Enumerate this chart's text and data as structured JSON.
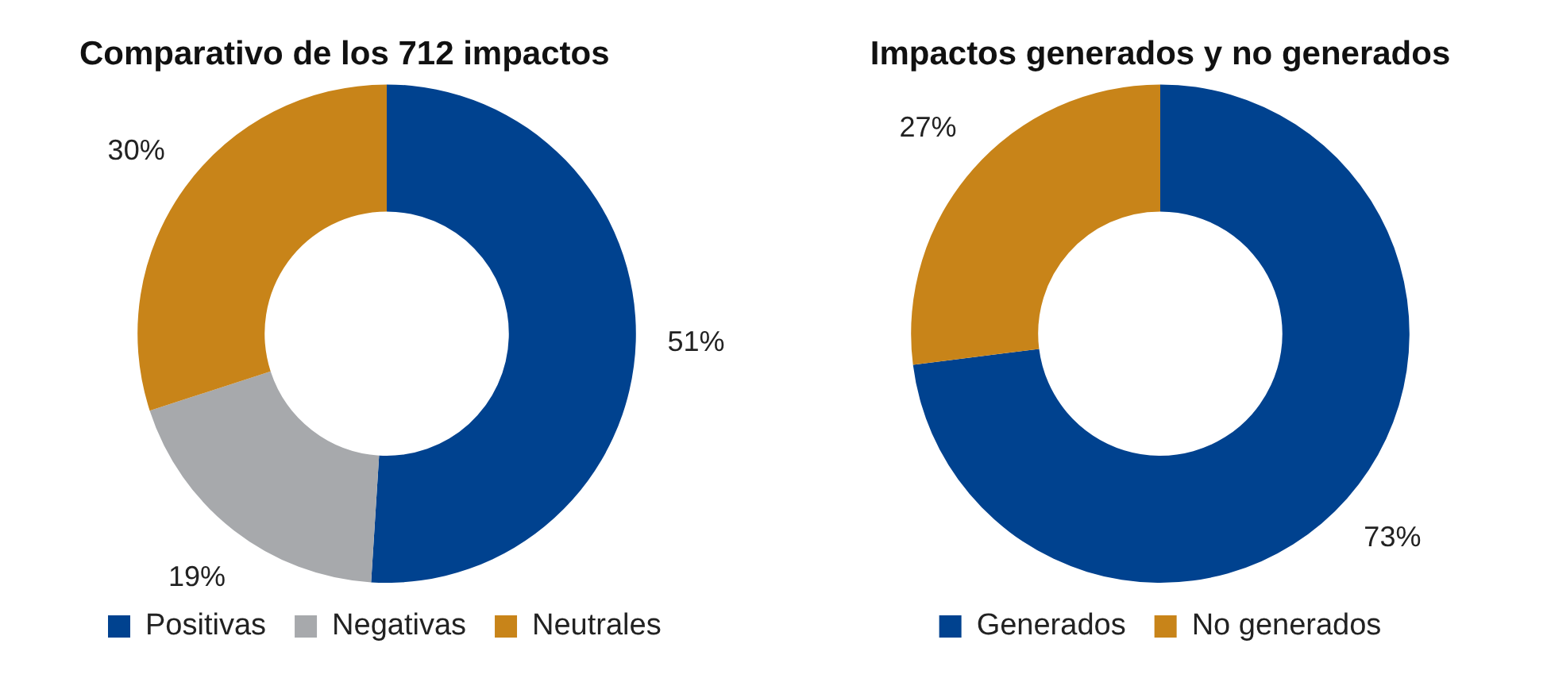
{
  "chart_data": [
    {
      "type": "donut",
      "title": "Comparativo de los 712 impactos",
      "categories": [
        "Positivas",
        "Negativas",
        "Neutrales"
      ],
      "values": [
        51,
        19,
        30
      ],
      "value_labels": [
        "51%",
        "19%",
        "30%"
      ],
      "colors": [
        "#00428f",
        "#a7a9ac",
        "#c88419"
      ],
      "legend": "bottom"
    },
    {
      "type": "donut",
      "title": "Impactos generados y no generados",
      "categories": [
        "Generados",
        "No generados"
      ],
      "values": [
        73,
        27
      ],
      "value_labels": [
        "73%",
        "27%"
      ],
      "colors": [
        "#00428f",
        "#c88419"
      ],
      "legend": "bottom"
    }
  ]
}
